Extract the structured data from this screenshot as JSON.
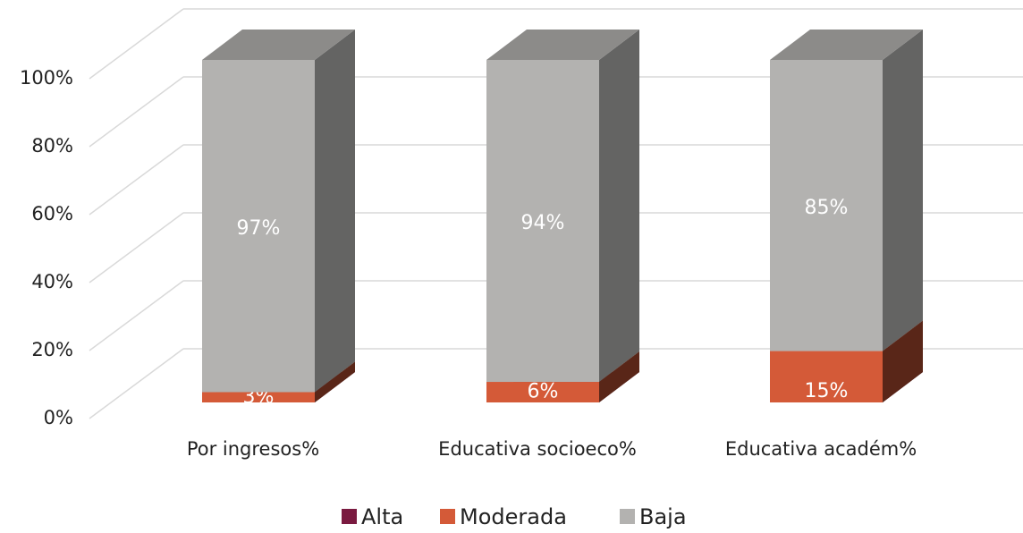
{
  "chart_data": {
    "type": "bar3d_stacked",
    "categories": [
      "Por ingresos%",
      "Educativa socioeco%",
      "Educativa académ%"
    ],
    "series": [
      {
        "name": "Alta",
        "color": "#7a1a40",
        "values": [
          0,
          0,
          0
        ]
      },
      {
        "name": "Moderada",
        "color": "#d45a38",
        "values": [
          3,
          6,
          15
        ],
        "value_labels": [
          "3%",
          "6%",
          "15%"
        ]
      },
      {
        "name": "Baja",
        "color": "#b3b2b0",
        "values": [
          97,
          94,
          85
        ],
        "value_labels": [
          "97%",
          "94%",
          "85%"
        ]
      }
    ],
    "ylim": [
      0,
      100
    ],
    "yticks": [
      {
        "value": 0,
        "label": "0%"
      },
      {
        "value": 20,
        "label": "20%"
      },
      {
        "value": 40,
        "label": "40%"
      },
      {
        "value": 60,
        "label": "60%"
      },
      {
        "value": 80,
        "label": "80%"
      },
      {
        "value": 100,
        "label": "100%"
      }
    ],
    "grid": true,
    "legend": "bottom"
  }
}
